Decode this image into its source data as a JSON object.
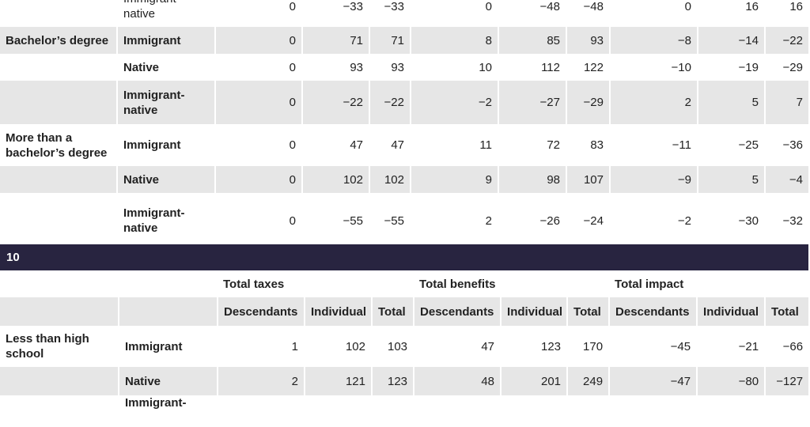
{
  "table1": {
    "rows": [
      {
        "group": "",
        "type": "Immigrant-native",
        "shade": false,
        "bold_type": false,
        "v": [
          "0",
          "−33",
          "−33",
          "0",
          "−48",
          "−48",
          "0",
          "16",
          "16"
        ]
      },
      {
        "group": "Bachelor’s degree",
        "type": "Immigrant",
        "shade": true,
        "bold_type": true,
        "v": [
          "0",
          "71",
          "71",
          "8",
          "85",
          "93",
          "−8",
          "−14",
          "−22"
        ]
      },
      {
        "group": "",
        "type": "Native",
        "shade": false,
        "bold_type": true,
        "v": [
          "0",
          "93",
          "93",
          "10",
          "112",
          "122",
          "−10",
          "−19",
          "−29"
        ]
      },
      {
        "group": "",
        "type": "Immigrant-native",
        "shade": true,
        "bold_type": true,
        "v": [
          "0",
          "−22",
          "−22",
          "−2",
          "−27",
          "−29",
          "2",
          "5",
          "7"
        ]
      },
      {
        "group": "More than a bachelor’s degree",
        "type": "Immigrant",
        "shade": false,
        "bold_type": true,
        "v": [
          "0",
          "47",
          "47",
          "11",
          "72",
          "83",
          "−11",
          "−25",
          "−36"
        ]
      },
      {
        "group": "",
        "type": "Native",
        "shade": true,
        "bold_type": true,
        "v": [
          "0",
          "102",
          "102",
          "9",
          "98",
          "107",
          "−9",
          "5",
          "−4"
        ]
      },
      {
        "group": "",
        "type": "Immigrant-native",
        "shade": false,
        "bold_type": true,
        "v": [
          "0",
          "−55",
          "−55",
          "2",
          "−26",
          "−24",
          "−2",
          "−30",
          "−32"
        ]
      }
    ]
  },
  "section_label": "10",
  "table2": {
    "group_headers": [
      "Total taxes",
      "Total benefits",
      "Total impact"
    ],
    "sub_headers": [
      "Descendants",
      "Individual",
      "Total",
      "Descendants",
      "Individual",
      "Total",
      "Descendants",
      "Individual",
      "Total"
    ],
    "rows": [
      {
        "group": "Less than high school",
        "type": "Immigrant",
        "shade": false,
        "v": [
          "1",
          "102",
          "103",
          "47",
          "123",
          "170",
          "−45",
          "−21",
          "−66"
        ]
      },
      {
        "group": "",
        "type": "Native",
        "shade": true,
        "v": [
          "2",
          "121",
          "123",
          "48",
          "201",
          "249",
          "−47",
          "−80",
          "−127"
        ]
      },
      {
        "group": "",
        "type": "Immigrant-",
        "shade": false,
        "v": [
          "",
          "",
          "",
          "",
          "",
          "",
          "",
          "",
          ""
        ]
      }
    ]
  }
}
